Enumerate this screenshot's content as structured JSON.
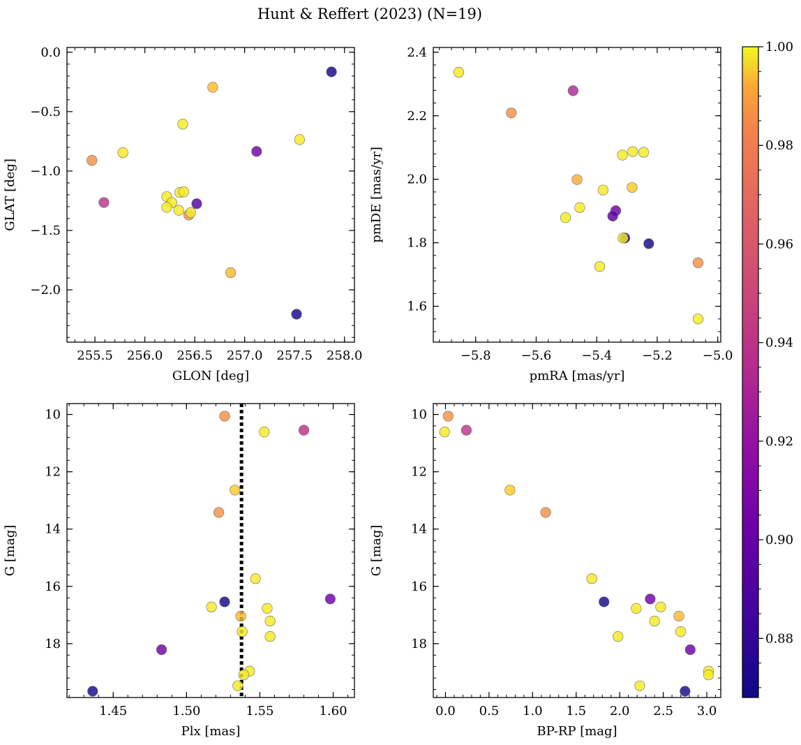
{
  "title": "Hunt & Reffert (2023) (N=19)",
  "colorbar": {
    "cmap": "plasma",
    "range": [
      0.868,
      1.0
    ],
    "ticks": [
      0.88,
      0.9,
      0.92,
      0.94,
      0.96,
      0.98,
      1.0
    ],
    "tick_labels": [
      "0.88",
      "0.90",
      "0.92",
      "0.94",
      "0.96",
      "0.98",
      "1.00"
    ]
  },
  "chart_data": [
    {
      "type": "scatter",
      "xlabel": "GLON [deg]",
      "ylabel": "GLAT [deg]",
      "xlim": [
        255.22,
        258.1
      ],
      "ylim": [
        -2.44,
        0.04
      ],
      "xticks": [
        255.5,
        256.0,
        256.5,
        257.0,
        257.5,
        258.0
      ],
      "xtick_labels": [
        "255.5",
        "256.0",
        "256.5",
        "257.0",
        "257.5",
        "258.0"
      ],
      "yticks": [
        -2.0,
        -1.5,
        -1.0,
        -0.5,
        0.0
      ],
      "ytick_labels": [
        "−2.0",
        "−1.5",
        "−1.0",
        "−0.5",
        "0.0"
      ],
      "points": [
        {
          "x": 257.87,
          "y": -0.165,
          "c": 0.87
        },
        {
          "x": 256.68,
          "y": -0.295,
          "c": 0.98
        },
        {
          "x": 256.38,
          "y": -0.605,
          "c": 0.995
        },
        {
          "x": 257.55,
          "y": -0.735,
          "c": 0.995
        },
        {
          "x": 257.12,
          "y": -0.835,
          "c": 0.895
        },
        {
          "x": 255.78,
          "y": -0.845,
          "c": 0.995
        },
        {
          "x": 255.47,
          "y": -0.91,
          "c": 0.965
        },
        {
          "x": 256.35,
          "y": -1.18,
          "c": 0.995
        },
        {
          "x": 256.39,
          "y": -1.175,
          "c": 0.995
        },
        {
          "x": 256.22,
          "y": -1.215,
          "c": 0.995
        },
        {
          "x": 256.27,
          "y": -1.265,
          "c": 0.995
        },
        {
          "x": 255.59,
          "y": -1.265,
          "c": 0.925
        },
        {
          "x": 256.52,
          "y": -1.275,
          "c": 0.885
        },
        {
          "x": 256.22,
          "y": -1.305,
          "c": 0.995
        },
        {
          "x": 256.34,
          "y": -1.33,
          "c": 0.995
        },
        {
          "x": 256.44,
          "y": -1.37,
          "c": 0.965
        },
        {
          "x": 256.46,
          "y": -1.35,
          "c": 0.995
        },
        {
          "x": 256.86,
          "y": -1.855,
          "c": 0.98
        },
        {
          "x": 257.52,
          "y": -2.205,
          "c": 0.87
        }
      ]
    },
    {
      "type": "scatter",
      "xlabel": "pmRA [mas/yr]",
      "ylabel": "pmDE [mas/yr]",
      "xlim": [
        -5.94,
        -4.99
      ],
      "ylim": [
        1.487,
        2.415
      ],
      "xticks": [
        -5.8,
        -5.6,
        -5.4,
        -5.2,
        -5.0
      ],
      "xtick_labels": [
        "−5.8",
        "−5.6",
        "−5.4",
        "−5.2",
        "−5.0"
      ],
      "yticks": [
        1.6,
        1.8,
        2.0,
        2.2,
        2.4
      ],
      "ytick_labels": [
        "1.6",
        "1.8",
        "2.0",
        "2.2",
        "2.4"
      ],
      "points": [
        {
          "x": -5.856,
          "y": 2.337,
          "c": 0.995
        },
        {
          "x": -5.478,
          "y": 2.279,
          "c": 0.92
        },
        {
          "x": -5.682,
          "y": 2.209,
          "c": 0.965
        },
        {
          "x": -5.281,
          "y": 2.087,
          "c": 0.995
        },
        {
          "x": -5.245,
          "y": 2.085,
          "c": 0.995
        },
        {
          "x": -5.315,
          "y": 2.076,
          "c": 0.995
        },
        {
          "x": -5.465,
          "y": 1.999,
          "c": 0.975
        },
        {
          "x": -5.379,
          "y": 1.966,
          "c": 0.995
        },
        {
          "x": -5.283,
          "y": 1.974,
          "c": 0.985
        },
        {
          "x": -5.456,
          "y": 1.911,
          "c": 0.995
        },
        {
          "x": -5.337,
          "y": 1.901,
          "c": 0.895
        },
        {
          "x": -5.503,
          "y": 1.879,
          "c": 0.995
        },
        {
          "x": -5.347,
          "y": 1.884,
          "c": 0.89
        },
        {
          "x": -5.307,
          "y": 1.815,
          "c": 0.87
        },
        {
          "x": -5.313,
          "y": 1.815,
          "c": 0.995
        },
        {
          "x": -5.228,
          "y": 1.797,
          "c": 0.87
        },
        {
          "x": -5.065,
          "y": 1.737,
          "c": 0.965
        },
        {
          "x": -5.39,
          "y": 1.725,
          "c": 0.995
        },
        {
          "x": -5.065,
          "y": 1.56,
          "c": 0.995
        }
      ]
    },
    {
      "type": "scatter",
      "xlabel": "Plx [mas]",
      "ylabel": "G [mag]",
      "xlim": [
        1.4185,
        1.6145
      ],
      "ylim": [
        19.88,
        9.62
      ],
      "invert_y": true,
      "vline": {
        "x": 1.5375,
        "style": "dotted"
      },
      "xticks": [
        1.45,
        1.5,
        1.55,
        1.6
      ],
      "xtick_labels": [
        "1.45",
        "1.50",
        "1.55",
        "1.60"
      ],
      "yticks": [
        10,
        12,
        14,
        16,
        18
      ],
      "ytick_labels": [
        "10",
        "12",
        "14",
        "16",
        "18"
      ],
      "points": [
        {
          "x": 1.526,
          "y": 10.06,
          "c": 0.965
        },
        {
          "x": 1.58,
          "y": 10.55,
          "c": 0.925
        },
        {
          "x": 1.553,
          "y": 10.61,
          "c": 0.995
        },
        {
          "x": 1.533,
          "y": 12.64,
          "c": 0.985
        },
        {
          "x": 1.522,
          "y": 13.42,
          "c": 0.965
        },
        {
          "x": 1.547,
          "y": 15.73,
          "c": 0.995
        },
        {
          "x": 1.598,
          "y": 16.44,
          "c": 0.895
        },
        {
          "x": 1.526,
          "y": 16.54,
          "c": 0.87
        },
        {
          "x": 1.517,
          "y": 16.72,
          "c": 0.995
        },
        {
          "x": 1.555,
          "y": 16.77,
          "c": 0.995
        },
        {
          "x": 1.537,
          "y": 17.04,
          "c": 0.98
        },
        {
          "x": 1.557,
          "y": 17.21,
          "c": 0.995
        },
        {
          "x": 1.538,
          "y": 17.58,
          "c": 0.995
        },
        {
          "x": 1.557,
          "y": 17.75,
          "c": 0.995
        },
        {
          "x": 1.483,
          "y": 18.21,
          "c": 0.895
        },
        {
          "x": 1.543,
          "y": 18.96,
          "c": 0.995
        },
        {
          "x": 1.539,
          "y": 19.09,
          "c": 0.995
        },
        {
          "x": 1.535,
          "y": 19.47,
          "c": 0.995
        },
        {
          "x": 1.436,
          "y": 19.66,
          "c": 0.87
        }
      ]
    },
    {
      "type": "scatter",
      "xlabel": "BP-RP [mag]",
      "ylabel": "G [mag]",
      "xlim": [
        -0.14,
        3.16
      ],
      "ylim": [
        19.88,
        9.62
      ],
      "invert_y": true,
      "xticks": [
        0.0,
        0.5,
        1.0,
        1.5,
        2.0,
        2.5,
        3.0
      ],
      "xtick_labels": [
        "0.0",
        "0.5",
        "1.0",
        "1.5",
        "2.0",
        "2.5",
        "3.0"
      ],
      "yticks": [
        10,
        12,
        14,
        16,
        18
      ],
      "ytick_labels": [
        "10",
        "12",
        "14",
        "16",
        "18"
      ],
      "points": [
        {
          "x": 0.03,
          "y": 10.06,
          "c": 0.965
        },
        {
          "x": 0.24,
          "y": 10.55,
          "c": 0.925
        },
        {
          "x": -0.01,
          "y": 10.61,
          "c": 0.995
        },
        {
          "x": 0.74,
          "y": 12.64,
          "c": 0.985
        },
        {
          "x": 1.15,
          "y": 13.42,
          "c": 0.965
        },
        {
          "x": 1.68,
          "y": 15.73,
          "c": 0.995
        },
        {
          "x": 2.35,
          "y": 16.44,
          "c": 0.895
        },
        {
          "x": 1.82,
          "y": 16.54,
          "c": 0.87
        },
        {
          "x": 2.47,
          "y": 16.72,
          "c": 0.995
        },
        {
          "x": 2.19,
          "y": 16.77,
          "c": 0.995
        },
        {
          "x": 2.68,
          "y": 17.04,
          "c": 0.98
        },
        {
          "x": 2.4,
          "y": 17.21,
          "c": 0.995
        },
        {
          "x": 2.7,
          "y": 17.58,
          "c": 0.995
        },
        {
          "x": 1.98,
          "y": 17.75,
          "c": 0.995
        },
        {
          "x": 2.81,
          "y": 18.21,
          "c": 0.895
        },
        {
          "x": 3.02,
          "y": 18.96,
          "c": 0.995
        },
        {
          "x": 3.02,
          "y": 19.09,
          "c": 0.995
        },
        {
          "x": 2.23,
          "y": 19.47,
          "c": 0.995
        },
        {
          "x": 2.75,
          "y": 19.66,
          "c": 0.87
        }
      ]
    }
  ]
}
